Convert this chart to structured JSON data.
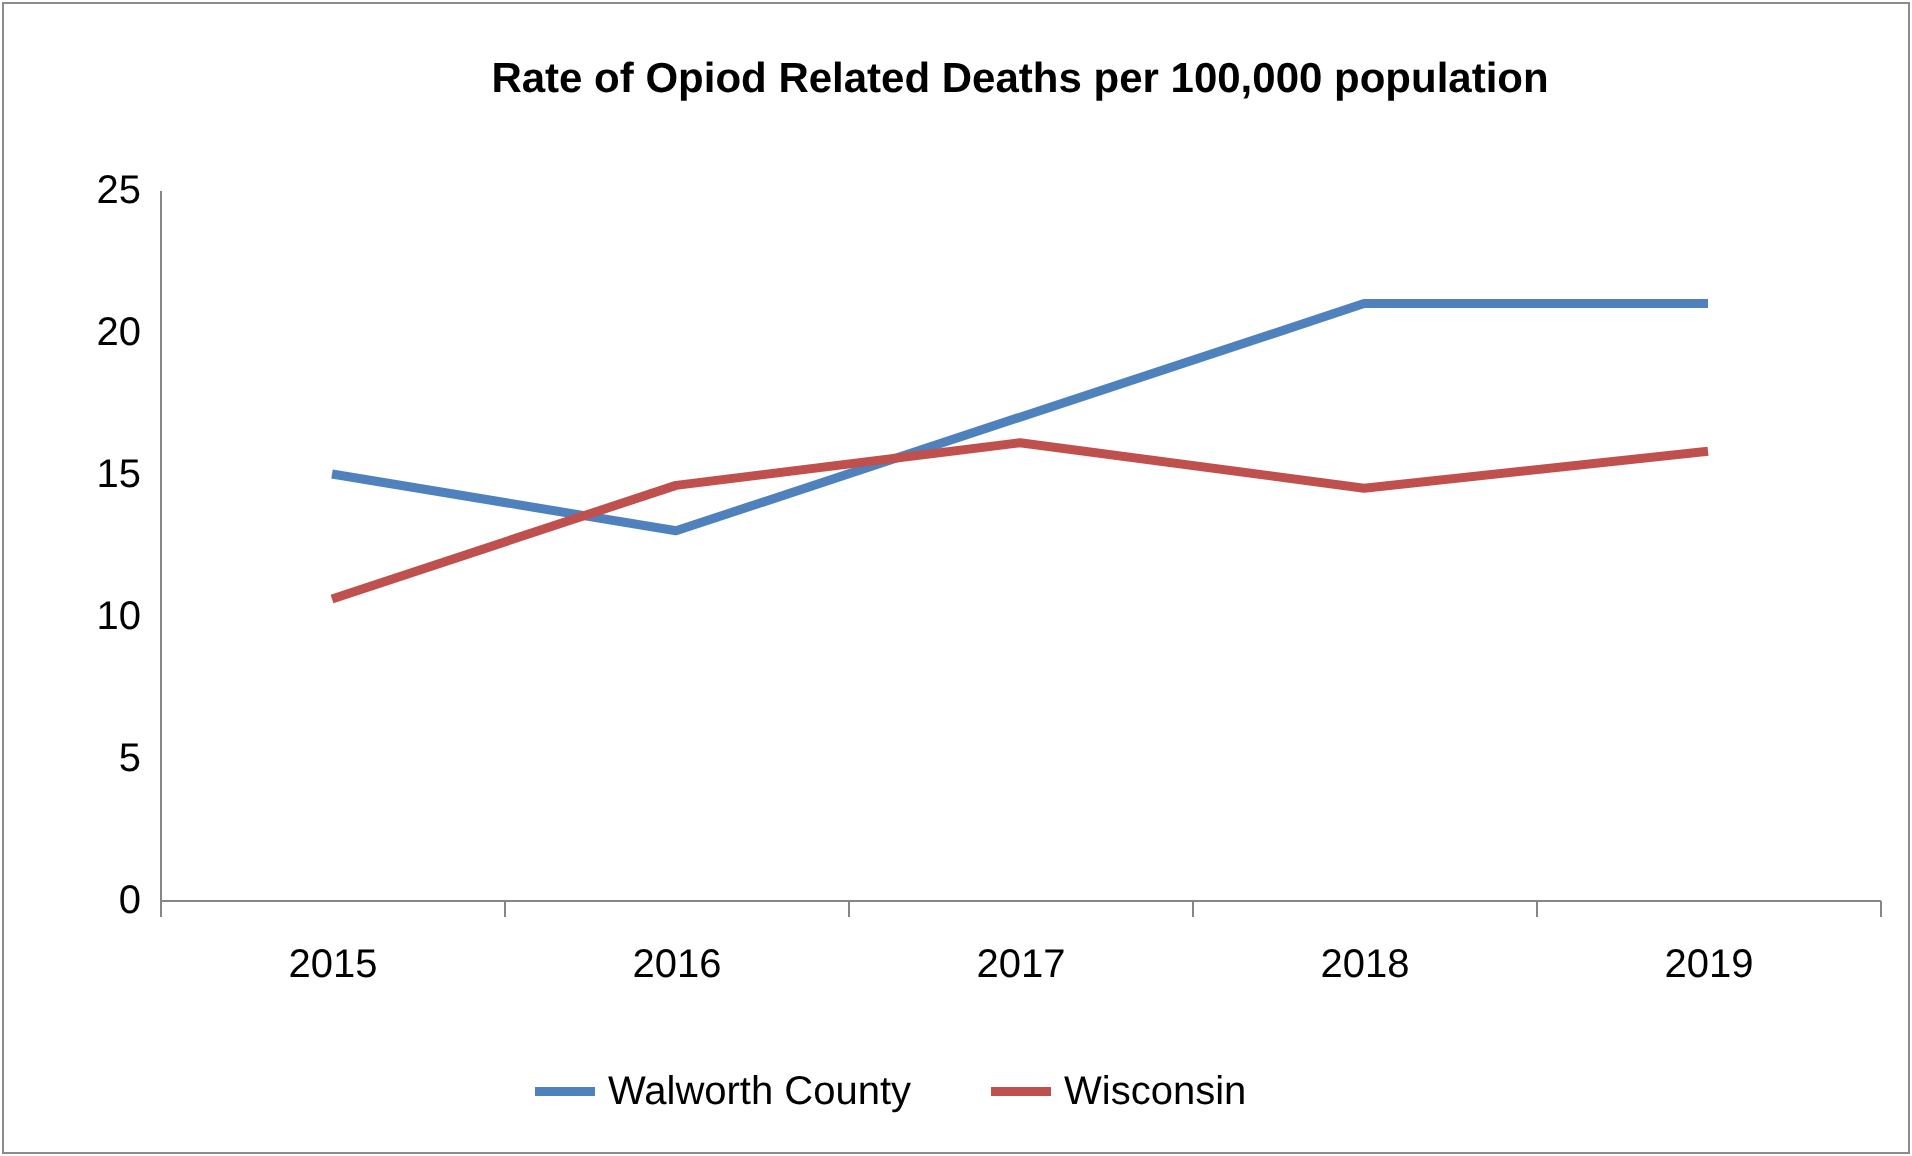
{
  "chart_data": {
    "type": "line",
    "title": "Rate of Opiod Related Deaths per 100,000 population",
    "categories": [
      "2015",
      "2016",
      "2017",
      "2018",
      "2019"
    ],
    "series": [
      {
        "name": "Walworth County",
        "color": "#4f81bd",
        "values": [
          15,
          13,
          17,
          21,
          21
        ]
      },
      {
        "name": "Wisconsin",
        "color": "#c0504d",
        "values": [
          10.6,
          14.6,
          16.1,
          14.5,
          15.8
        ]
      }
    ],
    "ylim": [
      0,
      25
    ],
    "yticks": [
      0,
      5,
      10,
      15,
      20,
      25
    ],
    "grid": false,
    "legend": "bottom"
  }
}
